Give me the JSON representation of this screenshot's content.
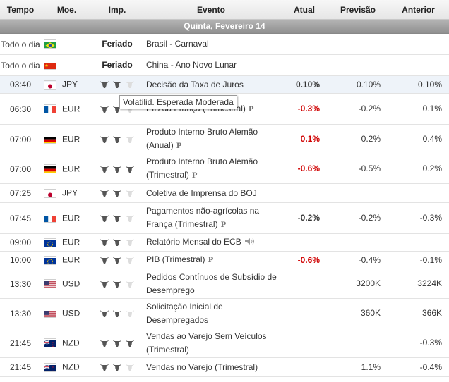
{
  "headers": {
    "time": "Tempo",
    "currency": "Moe.",
    "importance": "Imp.",
    "event": "Evento",
    "actual": "Atual",
    "forecast": "Previsão",
    "previous": "Anterior"
  },
  "date_label": "Quinta, Fevereiro 14",
  "tooltip": "Volatilid. Esperada Moderada",
  "holiday_label": "Feriado",
  "preliminary_mark": "P",
  "colors": {
    "negative": "#d00000",
    "bull_active": "#555555",
    "bull_inactive": "#dddddd",
    "highlight_row": "#eef3f9"
  },
  "rows": [
    {
      "time": "Todo o dia",
      "flag": "BR",
      "currency": "",
      "holiday": true,
      "event": "Brasil - Carnaval",
      "actual": "",
      "forecast": "",
      "previous": ""
    },
    {
      "time": "Todo o dia",
      "flag": "CN",
      "currency": "",
      "holiday": true,
      "event": "China - Ano Novo Lunar",
      "actual": "",
      "forecast": "",
      "previous": ""
    },
    {
      "time": "03:40",
      "flag": "JP",
      "currency": "JPY",
      "importance": 2,
      "event": "Decisão da Taxa de Juros",
      "actual": "0.10%",
      "forecast": "0.10%",
      "previous": "0.10%"
    },
    {
      "time": "06:30",
      "flag": "FR",
      "currency": "EUR",
      "importance": 2,
      "event": "PIB da França (Trimestral)",
      "actual": "-0.3%",
      "forecast": "-0.2%",
      "previous": "0.1%"
    },
    {
      "time": "07:00",
      "flag": "DE",
      "currency": "EUR",
      "importance": 2,
      "event": "Produto Interno Bruto Alemão (Anual)",
      "actual": "0.1%",
      "forecast": "0.2%",
      "previous": "0.4%"
    },
    {
      "time": "07:00",
      "flag": "DE",
      "currency": "EUR",
      "importance": 3,
      "event": "Produto Interno Bruto Alemão (Trimestral)",
      "actual": "-0.6%",
      "forecast": "-0.5%",
      "previous": "0.2%"
    },
    {
      "time": "07:25",
      "flag": "JP",
      "currency": "JPY",
      "importance": 2,
      "event": "Coletiva de Imprensa do BOJ",
      "actual": "",
      "forecast": "",
      "previous": ""
    },
    {
      "time": "07:45",
      "flag": "FR",
      "currency": "EUR",
      "importance": 2,
      "event": "Pagamentos não-agrícolas na França (Trimestral)",
      "actual": "-0.2%",
      "forecast": "-0.2%",
      "previous": "-0.3%"
    },
    {
      "time": "09:00",
      "flag": "EU",
      "currency": "EUR",
      "importance": 2,
      "event": "Relatório Mensal do ECB",
      "actual": "",
      "forecast": "",
      "previous": ""
    },
    {
      "time": "10:00",
      "flag": "EU",
      "currency": "EUR",
      "importance": 2,
      "event": "PIB (Trimestral)",
      "actual": "-0.6%",
      "forecast": "-0.4%",
      "previous": "-0.1%"
    },
    {
      "time": "13:30",
      "flag": "US",
      "currency": "USD",
      "importance": 2,
      "event": "Pedidos Contínuos de Subsídio de Desemprego",
      "actual": "",
      "forecast": "3200K",
      "previous": "3224K"
    },
    {
      "time": "13:30",
      "flag": "US",
      "currency": "USD",
      "importance": 2,
      "event": "Solicitação Inicial de Desempregados",
      "actual": "",
      "forecast": "360K",
      "previous": "366K"
    },
    {
      "time": "21:45",
      "flag": "NZ",
      "currency": "NZD",
      "importance": 3,
      "event": "Vendas ao Varejo Sem Veículos (Trimestral)",
      "actual": "",
      "forecast": "",
      "previous": "-0.3%"
    },
    {
      "time": "21:45",
      "flag": "NZ",
      "currency": "NZD",
      "importance": 2,
      "event": "Vendas no Varejo (Trimestral)",
      "actual": "",
      "forecast": "1.1%",
      "previous": "-0.4%"
    }
  ]
}
